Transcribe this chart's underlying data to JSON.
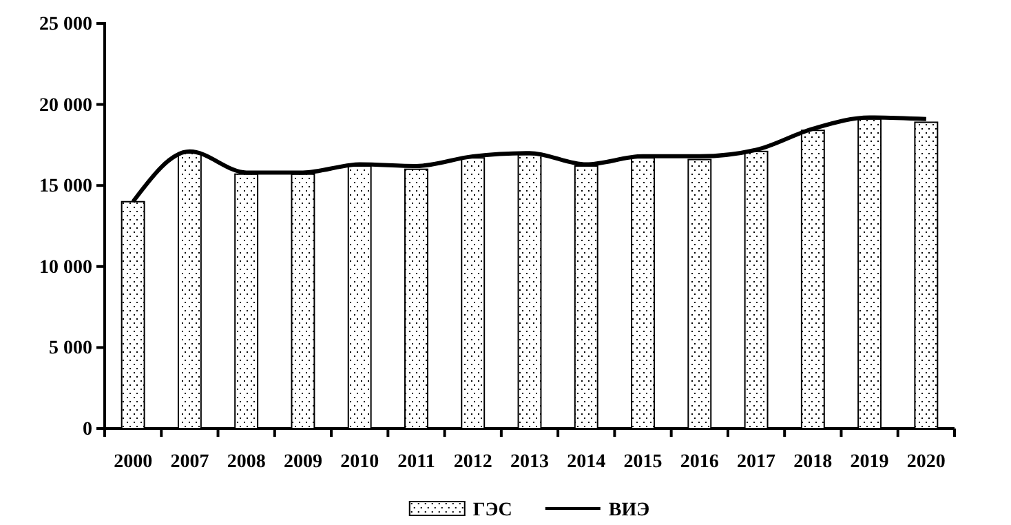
{
  "chart_data": {
    "type": "bar",
    "categories": [
      "2000",
      "2007",
      "2008",
      "2009",
      "2010",
      "2011",
      "2012",
      "2013",
      "2014",
      "2015",
      "2016",
      "2017",
      "2018",
      "2019",
      "2020"
    ],
    "series": [
      {
        "name": "ГЭС",
        "color": "#000000",
        "values": [
          14000,
          17000,
          15700,
          15700,
          16200,
          16000,
          16700,
          16900,
          16200,
          16700,
          16600,
          17100,
          18400,
          19100,
          18900
        ]
      },
      {
        "name": "ВИЭ",
        "type": "line",
        "color": "#000000",
        "values": [
          14000,
          17100,
          15800,
          15800,
          16300,
          16200,
          16800,
          17000,
          16300,
          16800,
          16800,
          17200,
          18500,
          19200,
          19100
        ]
      }
    ],
    "ylim": [
      0,
      25000
    ],
    "yticks": [
      {
        "value": 0,
        "label": "0"
      },
      {
        "value": 5000,
        "label": "5 000"
      },
      {
        "value": 10000,
        "label": "10 000"
      },
      {
        "value": 15000,
        "label": "15 000"
      },
      {
        "value": 20000,
        "label": "20 000"
      },
      {
        "value": 25000,
        "label": "25 000"
      }
    ],
    "grid": false,
    "legend": "bottom",
    "marker": "none",
    "line_style": "solid"
  }
}
